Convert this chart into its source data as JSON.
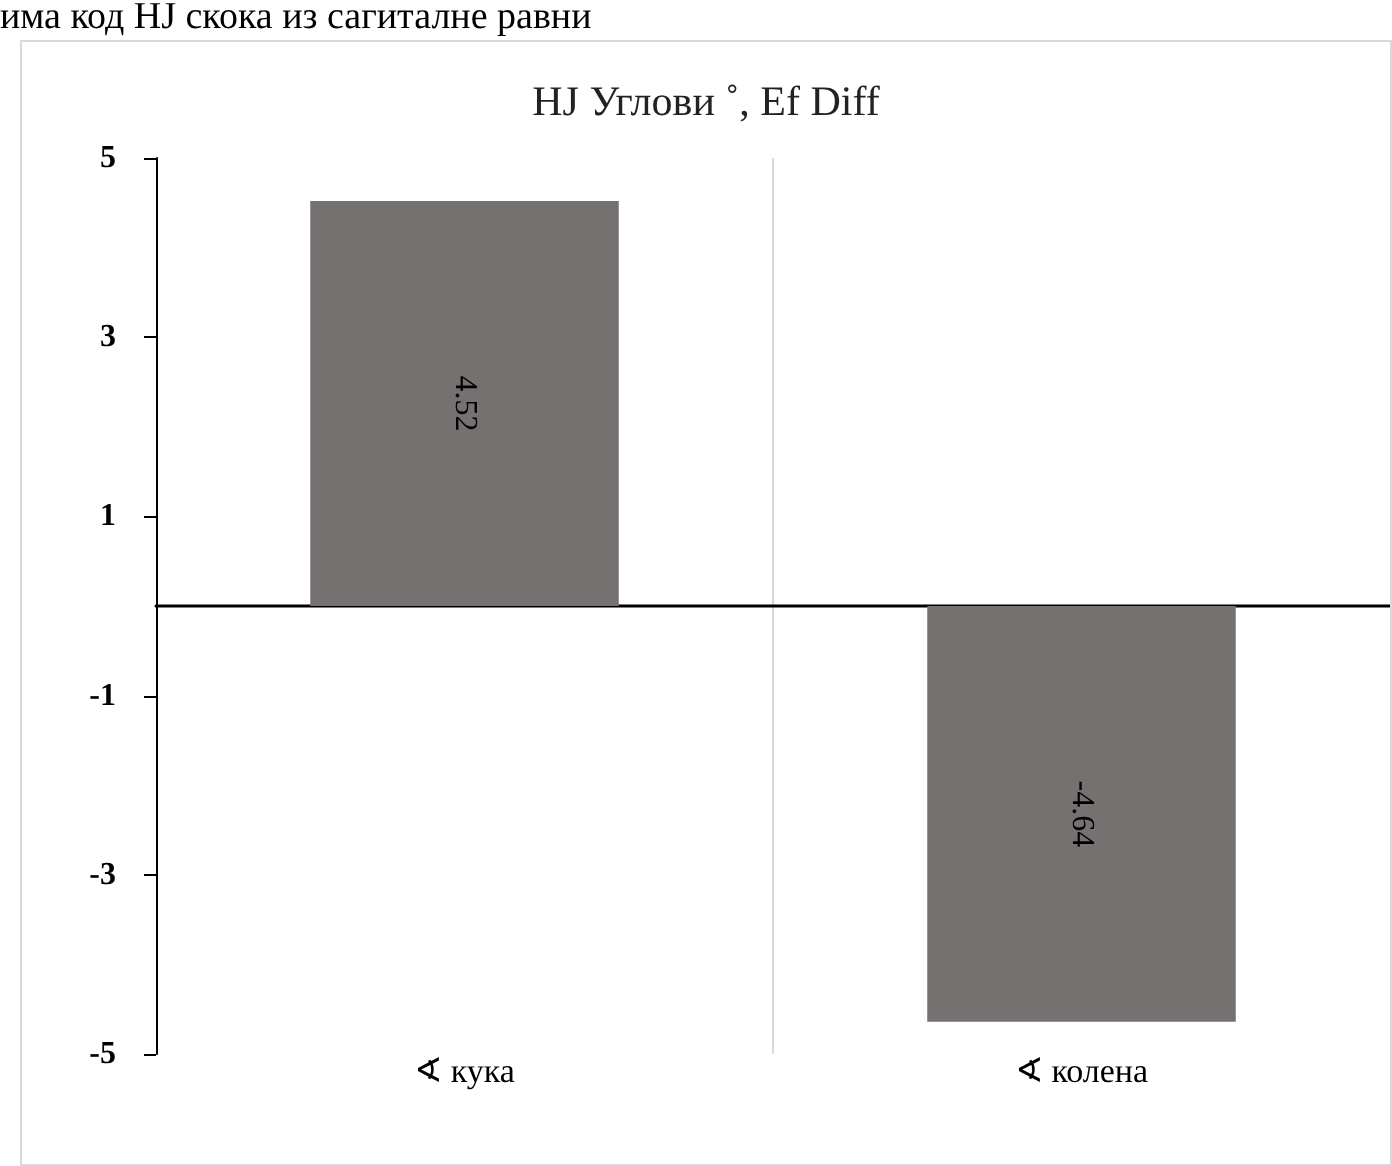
{
  "chart_data": {
    "type": "bar",
    "title": "HJ Углови ˚, Ef Diff",
    "annotations": [
      "има код HJ скока из сагиталне равни"
    ],
    "categories": [
      "∢ кука",
      "∢ колена"
    ],
    "values": [
      4.52,
      -4.64
    ],
    "color": "#757171",
    "ylim": [
      -5,
      5
    ],
    "yticks": [
      -5,
      -3,
      -1,
      1,
      3,
      5
    ],
    "grid": "x",
    "data_labels": true
  }
}
